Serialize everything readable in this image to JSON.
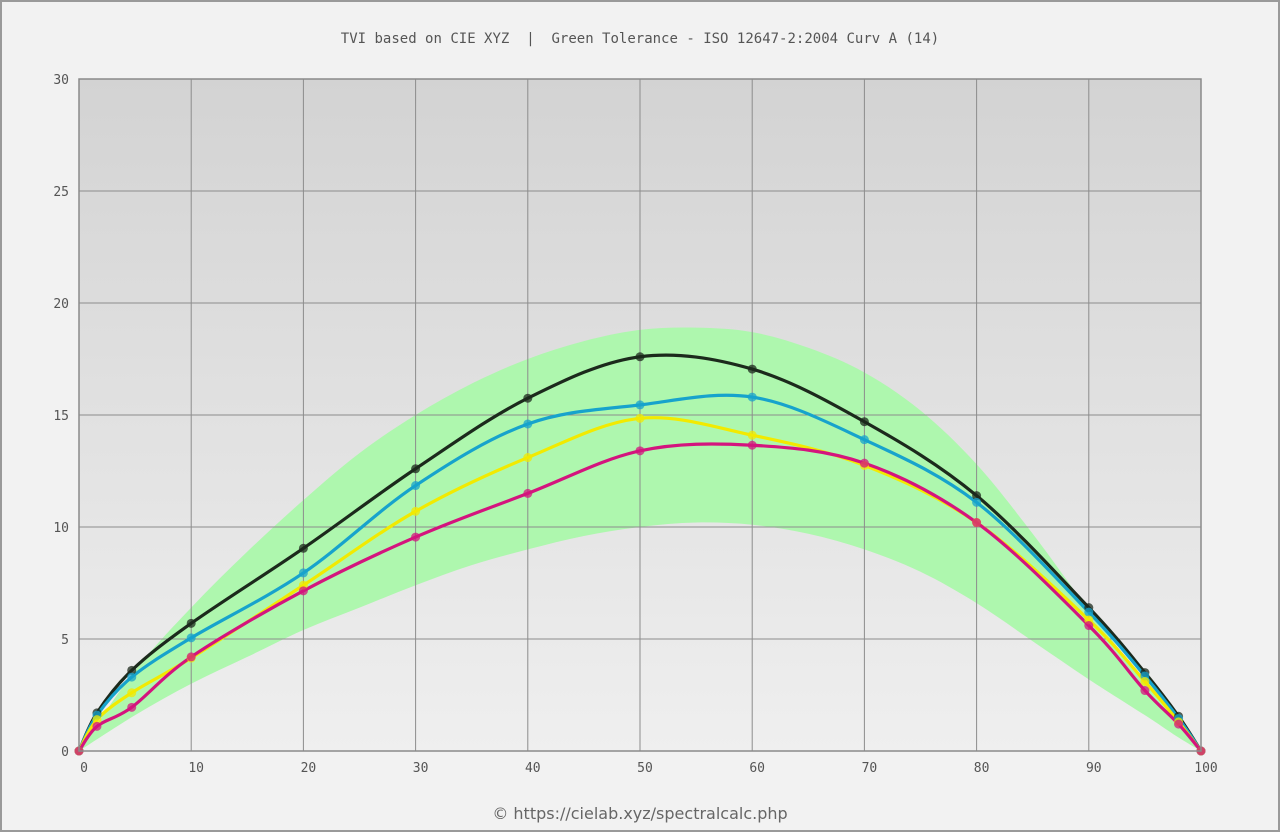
{
  "chart_data": {
    "type": "line",
    "title": "TVI based on CIE XYZ  |  Green Tolerance - ISO 12647-2:2004 Curv A (14)",
    "credit": "© https://cielab.xyz/spectralcalc.php",
    "xlim": [
      0,
      100
    ],
    "ylim": [
      0,
      30
    ],
    "x_ticks": [
      "0",
      "10",
      "20",
      "30",
      "40",
      "50",
      "60",
      "70",
      "80",
      "90",
      "100"
    ],
    "y_ticks": [
      "0",
      "5",
      "10",
      "15",
      "20",
      "25",
      "30"
    ],
    "grid": true,
    "background_gradient": [
      "#d3d3d3",
      "#efefef"
    ],
    "tolerance_band": {
      "color": "#aef7ae",
      "x": [
        0,
        5,
        10,
        15,
        20,
        25,
        30,
        35,
        40,
        45,
        50,
        55,
        60,
        65,
        70,
        75,
        80,
        85,
        90,
        95,
        98,
        100
      ],
      "upper": [
        0,
        3.6,
        6.4,
        8.9,
        11.2,
        13.3,
        15.0,
        16.4,
        17.5,
        18.3,
        18.8,
        18.9,
        18.7,
        18.0,
        16.9,
        15.2,
        12.8,
        9.7,
        6.3,
        3.1,
        1.2,
        0
      ],
      "lower": [
        0,
        1.6,
        3.0,
        4.2,
        5.4,
        6.4,
        7.4,
        8.3,
        9.0,
        9.6,
        10.0,
        10.2,
        10.1,
        9.7,
        9.0,
        8.0,
        6.6,
        4.9,
        3.2,
        1.6,
        0.6,
        0
      ]
    },
    "series": [
      {
        "color": "#1c2a1c",
        "x": [
          0,
          1.6,
          4.7,
          10,
          20,
          30,
          40,
          50,
          60,
          70,
          80,
          90,
          95,
          98,
          100
        ],
        "y": [
          0,
          1.7,
          3.6,
          5.7,
          9.05,
          12.6,
          15.75,
          17.6,
          17.05,
          14.7,
          11.4,
          6.4,
          3.5,
          1.55,
          0
        ]
      },
      {
        "color": "#17a3cc",
        "x": [
          0,
          1.6,
          4.7,
          10,
          20,
          30,
          40,
          50,
          60,
          70,
          80,
          90,
          95,
          98,
          100
        ],
        "y": [
          0,
          1.6,
          3.3,
          5.05,
          7.95,
          11.85,
          14.6,
          15.45,
          15.8,
          13.9,
          11.1,
          6.2,
          3.35,
          1.45,
          0
        ]
      },
      {
        "color": "#f2ea00",
        "x": [
          0,
          1.6,
          4.7,
          10,
          20,
          30,
          40,
          50,
          60,
          70,
          80,
          90,
          95,
          98,
          100
        ],
        "y": [
          0,
          1.4,
          2.6,
          4.15,
          7.4,
          10.7,
          13.1,
          14.85,
          14.1,
          12.75,
          10.2,
          5.85,
          3.1,
          1.3,
          0
        ]
      },
      {
        "color": "#d4147e",
        "x": [
          0,
          1.6,
          4.7,
          10,
          20,
          30,
          40,
          50,
          60,
          70,
          80,
          90,
          95,
          98,
          100
        ],
        "y": [
          0,
          1.1,
          1.95,
          4.2,
          7.15,
          9.55,
          11.5,
          13.4,
          13.65,
          12.85,
          10.2,
          5.6,
          2.7,
          1.2,
          0
        ]
      }
    ]
  }
}
